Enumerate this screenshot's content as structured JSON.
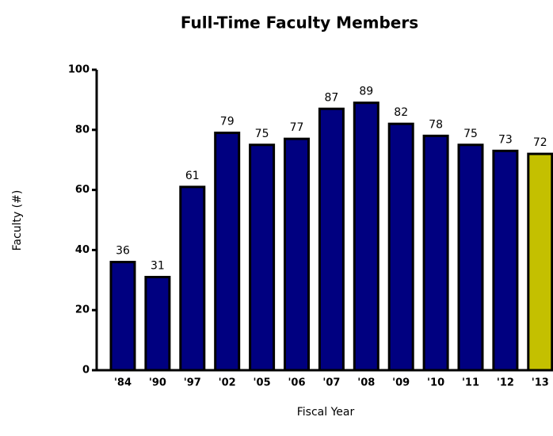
{
  "chart_data": {
    "type": "bar",
    "title": "Full-Time Faculty Members",
    "x_label": "Fiscal Year",
    "y_label": "Faculty (#)",
    "categories": [
      "'84",
      "'90",
      "'97",
      "'02",
      "'05",
      "'06",
      "'07",
      "'08",
      "'09",
      "'10",
      "'11",
      "'12",
      "'13"
    ],
    "values": [
      36,
      31,
      61,
      79,
      75,
      77,
      87,
      89,
      82,
      78,
      75,
      73,
      72
    ],
    "colors": [
      "#000080",
      "#000080",
      "#000080",
      "#000080",
      "#000080",
      "#000080",
      "#000080",
      "#000080",
      "#000080",
      "#000080",
      "#000080",
      "#000080",
      "#c4c000"
    ],
    "ylim": [
      0,
      100
    ],
    "yticks": [
      0,
      20,
      40,
      60,
      80,
      100
    ],
    "grid": false
  }
}
